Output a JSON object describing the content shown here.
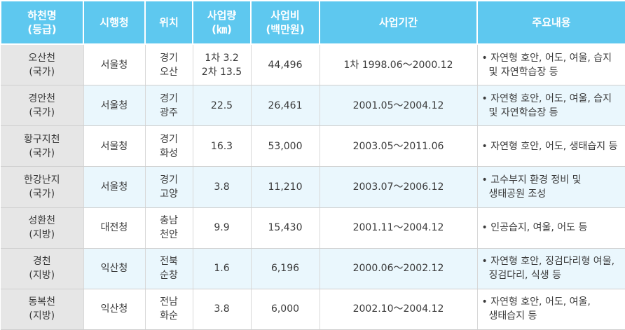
{
  "table": {
    "headers": [
      {
        "line1": "하천명",
        "line2": "(등급)"
      },
      {
        "line1": "시행청",
        "line2": ""
      },
      {
        "line1": "위치",
        "line2": ""
      },
      {
        "line1": "사업량",
        "line2": "(㎞)"
      },
      {
        "line1": "사업비",
        "line2": "(백만원)"
      },
      {
        "line1": "사업기간",
        "line2": ""
      },
      {
        "line1": "주요내용",
        "line2": ""
      }
    ],
    "rows": [
      {
        "name": "오산천",
        "grade": "(국가)",
        "agency": "서울청",
        "loc1": "경기",
        "loc2": "오산",
        "amount1": "1차 3.2",
        "amount2": "2차 13.5",
        "cost": "44,496",
        "period": "1차 1998.06～2000.12",
        "content1": "• 자연형 호안, 어도, 여울, 습지",
        "content2": "  및 자연학습장 등"
      },
      {
        "name": "경안천",
        "grade": "(국가)",
        "agency": "서울청",
        "loc1": "경기",
        "loc2": "광주",
        "amount1": "22.5",
        "amount2": "",
        "cost": "26,461",
        "period": "2001.05～2004.12",
        "content1": "• 자연형 호안, 어도, 여울, 습지",
        "content2": "  및 자연학습장 등"
      },
      {
        "name": "황구지천",
        "grade": "(국가)",
        "agency": "서울청",
        "loc1": "경기",
        "loc2": "화성",
        "amount1": "16.3",
        "amount2": "",
        "cost": "53,000",
        "period": "2003.05～2011.06",
        "content1": "• 자연형 호안, 어도, 생태습지 등",
        "content2": ""
      },
      {
        "name": "한강난지",
        "grade": "(국가)",
        "agency": "서울청",
        "loc1": "경기",
        "loc2": "고양",
        "amount1": "3.8",
        "amount2": "",
        "cost": "11,210",
        "period": "2003.07～2006.12",
        "content1": "• 고수부지 환경 정비 및",
        "content2": "  생태공원 조성"
      },
      {
        "name": "성환천",
        "grade": "(지방)",
        "agency": "대전청",
        "loc1": "충남",
        "loc2": "천안",
        "amount1": "9.9",
        "amount2": "",
        "cost": "15,430",
        "period": "2001.11～2004.12",
        "content1": "• 인공습지, 여울, 어도 등",
        "content2": ""
      },
      {
        "name": "경천",
        "grade": "(지방)",
        "agency": "익산청",
        "loc1": "전북",
        "loc2": "순창",
        "amount1": "1.6",
        "amount2": "",
        "cost": "6,196",
        "period": "2000.06～2002.12",
        "content1": "• 자연형 호안, 징검다리형 여울,",
        "content2": "  징검다리, 식생 등"
      },
      {
        "name": "동복천",
        "grade": "(지방)",
        "agency": "익산청",
        "loc1": "전남",
        "loc2": "화순",
        "amount1": "3.8",
        "amount2": "",
        "cost": "6,000",
        "period": "2002.10～2004.12",
        "content1": "• 자연형 호안, 어도, 여울,",
        "content2": "  생태습지 등"
      }
    ]
  },
  "colors": {
    "header_bg": "#5ec8ef",
    "header_text": "#ffffff",
    "name_col_bg": "#e6e6e6",
    "alt_row_bg": "#eaf7fd"
  }
}
